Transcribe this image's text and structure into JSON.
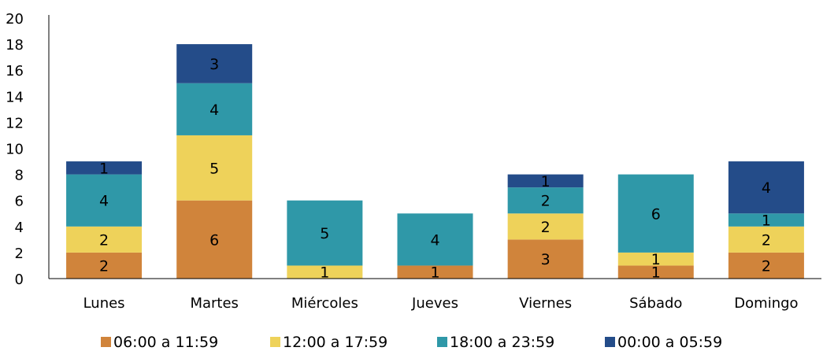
{
  "chart_data": {
    "type": "bar",
    "stacked": true,
    "categories": [
      "Lunes",
      "Martes",
      "Miércoles",
      "Jueves",
      "Viernes",
      "Sábado",
      "Domingo"
    ],
    "series": [
      {
        "name": "06:00 a 11:59",
        "color": "#D0843B",
        "values": [
          2,
          6,
          0,
          1,
          3,
          1,
          2
        ]
      },
      {
        "name": "12:00 a 17:59",
        "color": "#EED25A",
        "values": [
          2,
          5,
          1,
          0,
          2,
          1,
          2
        ]
      },
      {
        "name": "18:00 a 23:59",
        "color": "#2F98A8",
        "values": [
          4,
          4,
          5,
          4,
          2,
          6,
          1
        ]
      },
      {
        "name": "00:00 a 05:59",
        "color": "#244C89",
        "values": [
          1,
          3,
          0,
          0,
          1,
          0,
          4
        ]
      }
    ],
    "yticks": [
      0,
      2,
      4,
      6,
      8,
      10,
      12,
      14,
      16,
      18,
      20
    ],
    "ylim": [
      0,
      20
    ],
    "grid": false,
    "legend_position": "bottom"
  }
}
